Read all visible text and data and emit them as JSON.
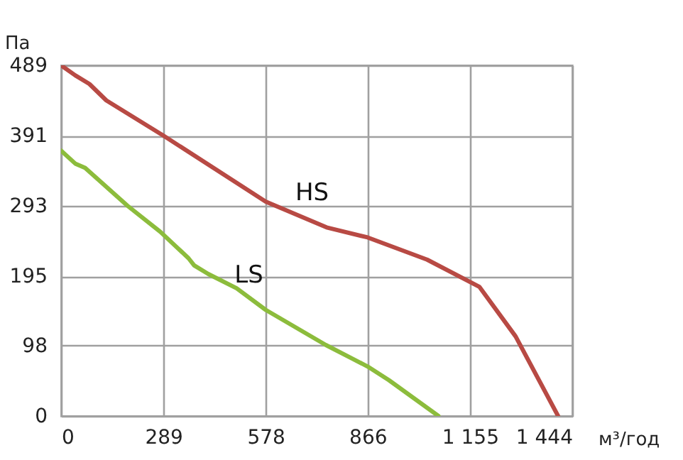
{
  "chart_data": {
    "type": "line",
    "xlabel": "м³/год",
    "ylabel": "Па",
    "xlim": [
      0,
      1444
    ],
    "ylim": [
      0,
      489
    ],
    "xticks": [
      0,
      289,
      578,
      866,
      {
        "value": 1155,
        "label": "1 155"
      },
      {
        "value": 1444,
        "label": "1 444"
      }
    ],
    "yticks": [
      0,
      98,
      195,
      293,
      391,
      489
    ],
    "grid": true,
    "marker": "none",
    "line_style": "solid",
    "series": [
      {
        "name": "HS",
        "color": "#b84a44",
        "x": [
          0,
          40,
          80,
          128,
          289,
          578,
          750,
          866,
          1034,
          1182,
          1284,
          1404
        ],
        "values": [
          489,
          475,
          463,
          440,
          391,
          299,
          263,
          249,
          218,
          180,
          111,
          0
        ]
      },
      {
        "name": "LS",
        "color": "#8cbc3c",
        "x": [
          0,
          40,
          68,
          188,
          280,
          360,
          376,
          416,
          496,
          578,
          748,
          866,
          926,
          1066
        ],
        "values": [
          370,
          352,
          346,
          293,
          257,
          220,
          210,
          198,
          178,
          148,
          99,
          69,
          50,
          0
        ]
      }
    ]
  }
}
